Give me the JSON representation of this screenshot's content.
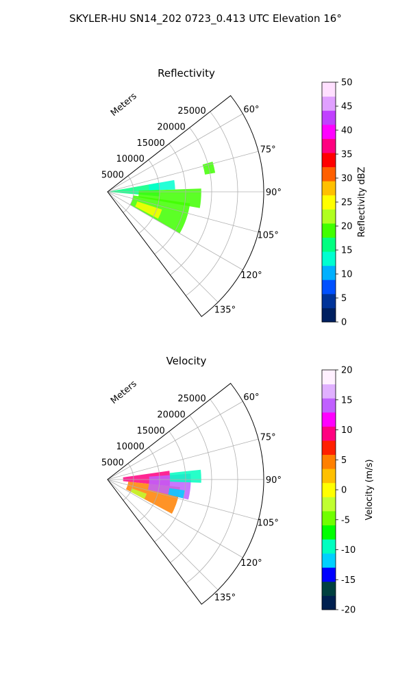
{
  "suptitle": "SKYLER-HU  SN14_202  0723_0.413 UTC Elevation 16°",
  "colors": {
    "reflectivity_cmap": [
      "#002060",
      "#003399",
      "#0050ff",
      "#00b0ff",
      "#00ffd0",
      "#00ff80",
      "#40ff00",
      "#b0ff20",
      "#ffff00",
      "#ffc000",
      "#ff6000",
      "#ff0000",
      "#ff0080",
      "#ff00ff",
      "#c040ff",
      "#e0a0ff",
      "#ffe0ff"
    ],
    "velocity_cmap": [
      "#002050",
      "#004040",
      "#0000ff",
      "#00d0ff",
      "#00ffc0",
      "#00ff00",
      "#70ff00",
      "#c0ff30",
      "#ffff00",
      "#ffc000",
      "#ff8000",
      "#ff2000",
      "#ff0080",
      "#ff00ff",
      "#c060ff",
      "#e0b0ff",
      "#fff0ff"
    ],
    "grid": "#b0b0b0"
  },
  "chart_data": [
    {
      "type": "heatmap",
      "projection": "polar-sector",
      "title": "Reflectivity",
      "radial_label": "Meters",
      "radial_ticks": [
        5000,
        10000,
        15000,
        20000,
        25000
      ],
      "rlim": [
        0,
        30000
      ],
      "angle_ticks": [
        "60°",
        "75°",
        "90°",
        "105°",
        "120°",
        "135°"
      ],
      "angle_tick_values": [
        60,
        75,
        90,
        105,
        120,
        135
      ],
      "angle_range_deg": [
        52,
        143
      ],
      "grid": true,
      "colorbar": {
        "label": "Reflectivity dBZ",
        "min": 0,
        "max": 50,
        "ticks": [
          0,
          5,
          10,
          15,
          20,
          25,
          30,
          35,
          40,
          45,
          50
        ]
      },
      "echo_regions": [
        {
          "az_range": [
            80,
            95
          ],
          "r_range": [
            500,
            10000
          ],
          "value": 16
        },
        {
          "az_range": [
            88,
            100
          ],
          "r_range": [
            6000,
            18000
          ],
          "value": 20
        },
        {
          "az_range": [
            98,
            120
          ],
          "r_range": [
            5000,
            16000
          ],
          "value": 20
        },
        {
          "az_range": [
            108,
            118
          ],
          "r_range": [
            6000,
            11000
          ],
          "value": 24
        },
        {
          "az_range": [
            80,
            88
          ],
          "r_range": [
            8000,
            13000
          ],
          "value": 14
        },
        {
          "az_range": [
            74,
            80
          ],
          "r_range": [
            19000,
            21000
          ],
          "value": 18
        }
      ]
    },
    {
      "type": "heatmap",
      "projection": "polar-sector",
      "title": "Velocity",
      "radial_label": "Meters",
      "radial_ticks": [
        5000,
        10000,
        15000,
        20000,
        25000
      ],
      "rlim": [
        0,
        30000
      ],
      "angle_ticks": [
        "60°",
        "75°",
        "90°",
        "105°",
        "120°",
        "135°"
      ],
      "angle_tick_values": [
        60,
        75,
        90,
        105,
        120,
        135
      ],
      "angle_range_deg": [
        52,
        143
      ],
      "grid": true,
      "colorbar": {
        "label": "Velocity (m/s)",
        "min": -20,
        "max": 20,
        "ticks": [
          -20,
          -15,
          -10,
          -5,
          0,
          5,
          10,
          15,
          20
        ]
      },
      "echo_regions": [
        {
          "az_range": [
            82,
            96
          ],
          "r_range": [
            3000,
            12000
          ],
          "value": 10
        },
        {
          "az_range": [
            96,
            118
          ],
          "r_range": [
            4000,
            14000
          ],
          "value": 4
        },
        {
          "az_range": [
            86,
            104
          ],
          "r_range": [
            8000,
            16000
          ],
          "value": 14
        },
        {
          "az_range": [
            98,
            104
          ],
          "r_range": [
            12000,
            15000
          ],
          "value": -11
        },
        {
          "az_range": [
            84,
            92
          ],
          "r_range": [
            12000,
            18000
          ],
          "value": -9
        },
        {
          "az_range": [
            110,
            118
          ],
          "r_range": [
            5000,
            8000
          ],
          "value": -3
        }
      ]
    }
  ]
}
